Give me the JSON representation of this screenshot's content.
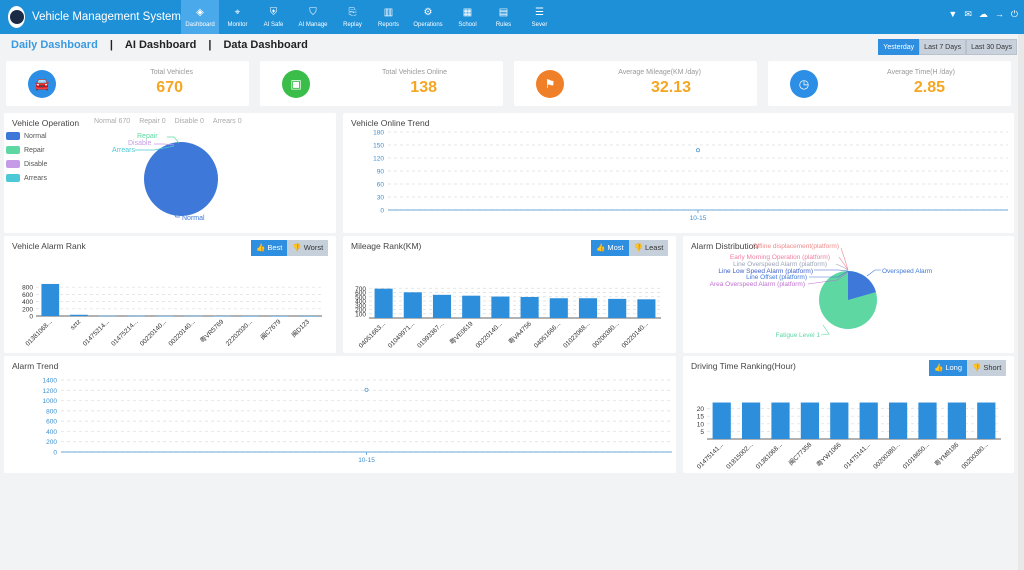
{
  "app": {
    "title": "Vehicle Management System"
  },
  "nav": [
    {
      "label": "Dashboard",
      "icon": "dashboard-icon",
      "active": true
    },
    {
      "label": "Monitor",
      "icon": "monitor-icon"
    },
    {
      "label": "AI Safe",
      "icon": "ai-safe-icon"
    },
    {
      "label": "AI Manage",
      "icon": "ai-manage-icon"
    },
    {
      "label": "Replay",
      "icon": "replay-icon"
    },
    {
      "label": "Reports",
      "icon": "reports-icon"
    },
    {
      "label": "Operations",
      "icon": "operations-icon"
    },
    {
      "label": "School",
      "icon": "school-icon"
    },
    {
      "label": "Rules",
      "icon": "rules-icon"
    },
    {
      "label": "Sever",
      "icon": "sever-icon"
    }
  ],
  "dashboard_tabs": [
    "Daily Dashboard",
    "AI Dashboard",
    "Data Dashboard"
  ],
  "date_range": [
    "Yesterday",
    "Last 7 Days",
    "Last 30 Days"
  ],
  "stats": [
    {
      "label": "Total Vehicles",
      "value": "670",
      "color": "#2c8ee4",
      "icon": "car-icon"
    },
    {
      "label": "Total Vehicles Online",
      "value": "138",
      "color": "#3bbd49",
      "icon": "calendar-icon"
    },
    {
      "label": "Average Mileage(KM /day)",
      "value": "32.13",
      "color": "#f07f2a",
      "icon": "flag-icon"
    },
    {
      "label": "Average Time(H /day)",
      "value": "2.85",
      "color": "#2c8ee4",
      "icon": "clock-icon"
    }
  ],
  "vehicle_operation": {
    "title": "Vehicle Operation",
    "summary": [
      "Normal 670",
      "Repair 0",
      "Disable 0",
      "Arrears 0"
    ],
    "legend": [
      {
        "name": "Normal",
        "color": "#3e78d8"
      },
      {
        "name": "Repair",
        "color": "#5ed7a3"
      },
      {
        "name": "Disable",
        "color": "#c59be8"
      },
      {
        "name": "Arrears",
        "color": "#4cc9d6"
      }
    ],
    "slice_labels": [
      "Repair",
      "Disable",
      "Arrears",
      "Normal"
    ]
  },
  "online_trend": {
    "title": "Vehicle Online Trend"
  },
  "alarm_rank": {
    "title": "Vehicle Alarm Rank",
    "toggle": [
      "Best",
      "Worst"
    ]
  },
  "mileage_rank": {
    "title": "Mileage Rank(KM)",
    "toggle": [
      "Most",
      "Least"
    ]
  },
  "alarm_distribution": {
    "title": "Alarm Distribution",
    "labels": [
      {
        "text": "Offline displacement(platform)",
        "color": "#f08a8a"
      },
      {
        "text": "Early Morning Operation (platform)",
        "color": "#f07ea0"
      },
      {
        "text": "Line Overspeed Alarm (platform)",
        "color": "#9aa4b8"
      },
      {
        "text": "Line Low Speed Alarm (platform)",
        "color": "#3e5fc8"
      },
      {
        "text": "Line Offset (platform)",
        "color": "#3e78d8"
      },
      {
        "text": "Area Overspeed Alarm (platform)",
        "color": "#c070d0"
      },
      {
        "text": "Overspeed Alarm",
        "color": "#3e78d8"
      },
      {
        "text": "Fatigue Level 1",
        "color": "#5ed7a3"
      }
    ]
  },
  "alarm_trend": {
    "title": "Alarm Trend"
  },
  "driving_rank": {
    "title": "Driving Time Ranking(Hour)",
    "toggle": [
      "Long",
      "Short"
    ]
  },
  "chart_data": [
    {
      "id": "vehicle-operation",
      "type": "pie",
      "categories": [
        "Normal",
        "Repair",
        "Disable",
        "Arrears"
      ],
      "values": [
        670,
        0,
        0,
        0
      ]
    },
    {
      "id": "online-trend",
      "type": "line",
      "x": [
        "10-15"
      ],
      "values": [
        138
      ],
      "ylim": [
        0,
        180
      ],
      "yticks": [
        0,
        30,
        60,
        90,
        120,
        150,
        180
      ],
      "grid": true
    },
    {
      "id": "alarm-rank",
      "type": "bar",
      "categories": [
        "01381068...",
        "sztz",
        "01475214...",
        "01475214...",
        "00220140...",
        "00220140...",
        "粤VR5769",
        "22202030...",
        "闽C7679",
        "闽D123"
      ],
      "values": [
        890,
        35,
        10,
        8,
        5,
        5,
        3,
        2,
        2,
        1
      ],
      "ylim": [
        0,
        1000
      ],
      "yticks": [
        0,
        200,
        400,
        600,
        800
      ],
      "grid": true
    },
    {
      "id": "mileage-rank",
      "type": "bar",
      "categories": [
        "04051663...",
        "01049971...",
        "01993367...",
        "粤VE0619",
        "00220140...",
        "粤VA4756",
        "04051666...",
        "01022068...",
        "00200380...",
        "00220140..."
      ],
      "values": [
        690,
        605,
        545,
        525,
        505,
        495,
        465,
        465,
        450,
        440
      ],
      "ylim": [
        0,
        800
      ],
      "yticks": [
        100,
        200,
        300,
        400,
        500,
        600,
        700
      ],
      "grid": true
    },
    {
      "id": "alarm-distribution",
      "type": "pie",
      "categories": [
        "Fatigue Level 1",
        "Overspeed Alarm",
        "Area Overspeed Alarm (platform)",
        "Line Offset (platform)",
        "Line Low Speed Alarm (platform)",
        "Line Overspeed Alarm (platform)",
        "Early Morning Operation (platform)",
        "Offline displacement(platform)"
      ],
      "values": [
        82,
        17,
        0.2,
        0.2,
        0.2,
        0.2,
        0.1,
        0.1
      ]
    },
    {
      "id": "alarm-trend",
      "type": "line",
      "x": [
        "10-15"
      ],
      "values": [
        1210
      ],
      "ylim": [
        0,
        1400
      ],
      "yticks": [
        0,
        200,
        400,
        600,
        800,
        1000,
        1200,
        1400
      ],
      "grid": true
    },
    {
      "id": "driving-rank",
      "type": "bar",
      "categories": [
        "01475141...",
        "01815002...",
        "01381068...",
        "闽C77358",
        "粤YW1066",
        "01475141...",
        "00200380...",
        "01018650...",
        "粤YM8186",
        "00200380..."
      ],
      "values": [
        24,
        24,
        24,
        24,
        24,
        24,
        24,
        24,
        24,
        24
      ],
      "ylim": [
        0,
        25
      ],
      "yticks": [
        5,
        10,
        15,
        20
      ],
      "grid": true
    }
  ]
}
